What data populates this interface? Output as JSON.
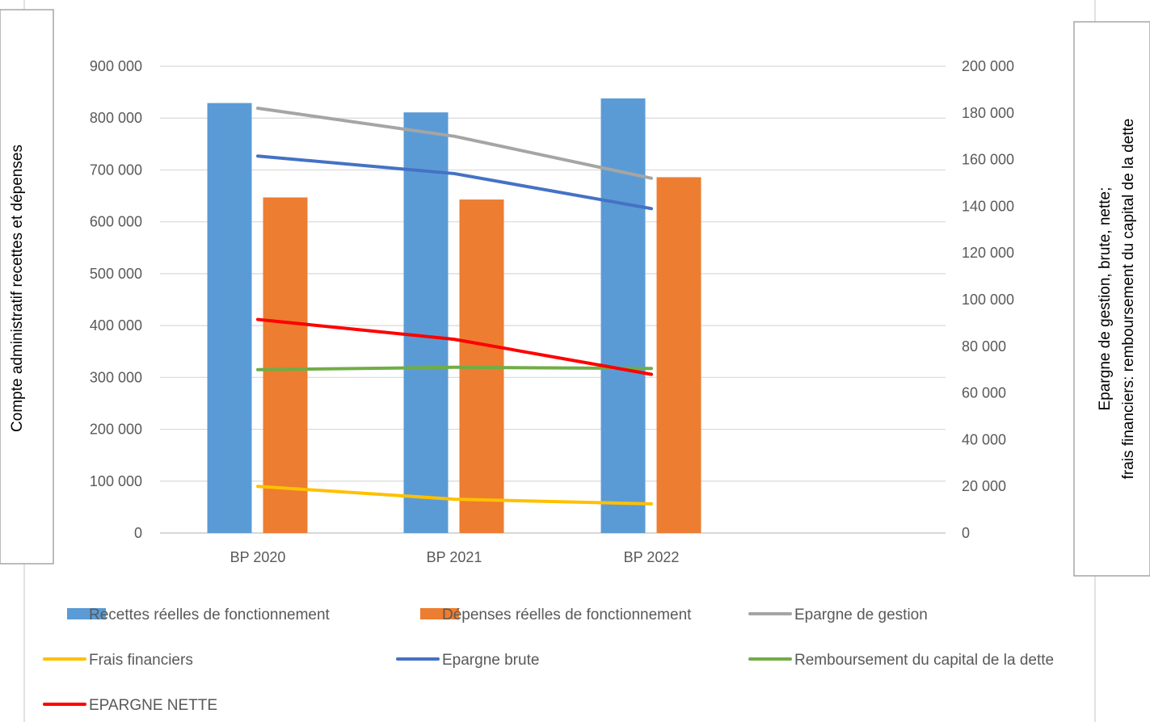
{
  "chart_data": {
    "type": "bar",
    "categories": [
      "BP 2020",
      "BP 2021",
      "BP 2022"
    ],
    "y_left": {
      "label": "Compte administratif recettes et dépenses",
      "range": [
        0,
        900000
      ],
      "ticks": [
        "0",
        "100 000",
        "200 000",
        "300 000",
        "400 000",
        "500 000",
        "600 000",
        "700 000",
        "800 000",
        "900 000"
      ]
    },
    "y_right": {
      "label_lines": [
        "Epargne de gestion, brute, nette;",
        "frais financiers: remboursement du capital de la dette"
      ],
      "range": [
        0,
        200000
      ],
      "ticks": [
        "0",
        "20 000",
        "40 000",
        "60 000",
        "80 000",
        "100 000",
        "120 000",
        "140 000",
        "160 000",
        "180 000",
        "200 000"
      ]
    },
    "grid": true,
    "legend_position": "bottom",
    "bar_series": [
      {
        "name": "Recettes réelles de fonctionnement",
        "color": "#5b9bd5",
        "axis": "left",
        "values": [
          829000,
          811000,
          838000
        ]
      },
      {
        "name": "Dépenses réelles de fonctionnement",
        "color": "#ed7d31",
        "axis": "left",
        "values": [
          647000,
          643000,
          686000
        ]
      }
    ],
    "line_series": [
      {
        "name": "Epargne de gestion",
        "color": "#a5a5a5",
        "axis": "right",
        "values": [
          182000,
          170000,
          152000
        ]
      },
      {
        "name": "Frais financiers",
        "color": "#ffc000",
        "axis": "right",
        "values": [
          20000,
          14500,
          12500
        ]
      },
      {
        "name": "Epargne brute",
        "color": "#4472c4",
        "axis": "right",
        "values": [
          161500,
          154000,
          139000
        ]
      },
      {
        "name": "Remboursement du capital de la dette",
        "color": "#70ad47",
        "axis": "right",
        "values": [
          70000,
          71000,
          70500
        ]
      },
      {
        "name": "EPARGNE NETTE",
        "color": "#ff0000",
        "axis": "right",
        "values": [
          91500,
          83000,
          68000
        ]
      }
    ],
    "legend_order": [
      "Recettes réelles de fonctionnement",
      "Dépenses réelles de fonctionnement",
      "Epargne de gestion",
      "Frais financiers",
      "Epargne brute",
      "Remboursement du capital de la dette",
      "EPARGNE NETTE"
    ]
  }
}
